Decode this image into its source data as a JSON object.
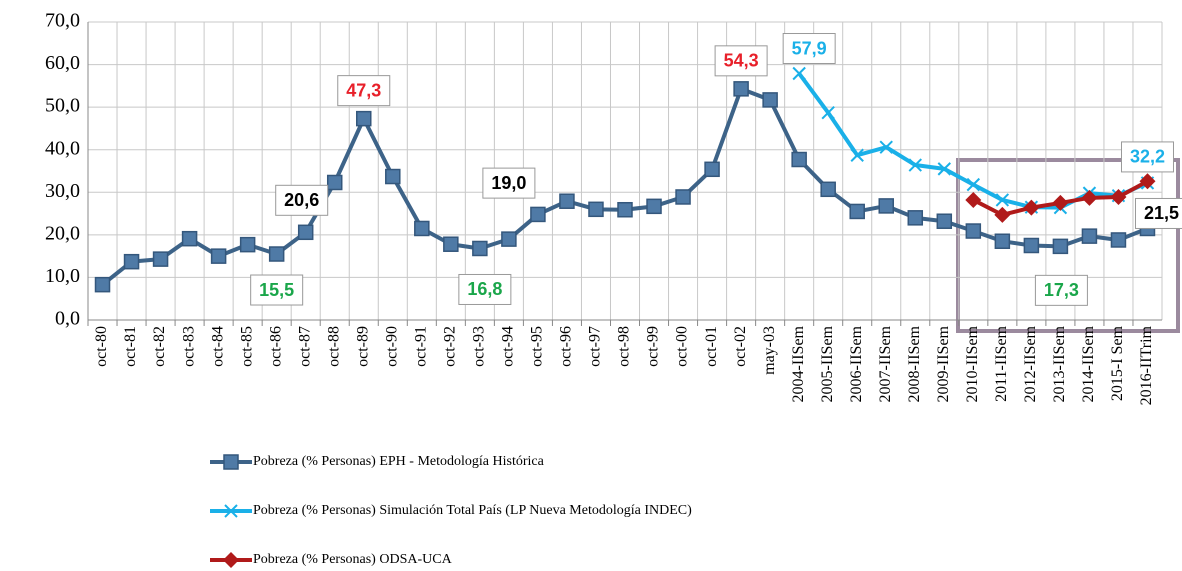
{
  "chart_data": {
    "type": "line",
    "categories": [
      "oct-80",
      "oct-81",
      "oct-82",
      "oct-83",
      "oct-84",
      "oct-85",
      "oct-86",
      "oct-87",
      "oct-88",
      "oct-89",
      "oct-90",
      "oct-91",
      "oct-92",
      "oct-93",
      "oct-94",
      "oct-95",
      "oct-96",
      "oct-97",
      "oct-98",
      "oct-99",
      "oct-00",
      "oct-01",
      "oct-02",
      "may-03",
      "2004-IISem",
      "2005-IISem",
      "2006-IISem",
      "2007-IISem",
      "2008-IISem",
      "2009-IISem",
      "2010-IISem",
      "2011-IISem",
      "2012-IISem",
      "2013-IISem",
      "2014-IISem",
      "2015-I Sem",
      "2016-IITrim"
    ],
    "series": [
      {
        "name": "Pobreza (% Personas) EPH - Metodología Histórica",
        "color": "#3d6388",
        "marker": "square",
        "values": [
          8.3,
          13.7,
          14.3,
          19.1,
          15.0,
          17.7,
          15.5,
          20.6,
          32.3,
          47.3,
          33.7,
          21.5,
          17.8,
          16.8,
          19.0,
          24.8,
          27.9,
          26.0,
          25.9,
          26.7,
          28.9,
          35.4,
          54.3,
          51.7,
          37.7,
          30.7,
          25.5,
          26.8,
          24.0,
          23.2,
          20.9,
          18.5,
          17.5,
          17.3,
          19.7,
          18.8,
          21.5
        ],
        "value_labels": [
          null,
          null,
          null,
          null,
          null,
          null,
          "15,5",
          "20,6",
          null,
          "47,3",
          null,
          null,
          null,
          "16,8",
          "19,0",
          null,
          null,
          null,
          null,
          null,
          null,
          null,
          "54,3",
          null,
          null,
          null,
          null,
          null,
          null,
          null,
          null,
          null,
          null,
          "17,3",
          null,
          null,
          "21,5"
        ],
        "value_label_colors": [
          null,
          null,
          null,
          null,
          null,
          null,
          "#1aa64a",
          "#000000",
          null,
          "#e8202a",
          null,
          null,
          null,
          "#1aa64a",
          "#000000",
          null,
          null,
          null,
          null,
          null,
          null,
          null,
          "#e8202a",
          null,
          null,
          null,
          null,
          null,
          null,
          null,
          null,
          null,
          null,
          "#1aa64a",
          null,
          null,
          "#000000"
        ]
      },
      {
        "name": "Pobreza (% Personas) Simulación Total País (LP Nueva Metodología INDEC)",
        "color": "#1ab0e8",
        "marker": "x",
        "values": [
          null,
          null,
          null,
          null,
          null,
          null,
          null,
          null,
          null,
          null,
          null,
          null,
          null,
          null,
          null,
          null,
          null,
          null,
          null,
          null,
          null,
          null,
          null,
          null,
          57.9,
          48.7,
          38.7,
          40.6,
          36.4,
          35.5,
          31.8,
          28.2,
          26.5,
          26.4,
          29.8,
          29.2,
          32.2
        ],
        "value_labels": [
          null,
          null,
          null,
          null,
          null,
          null,
          null,
          null,
          null,
          null,
          null,
          null,
          null,
          null,
          null,
          null,
          null,
          null,
          null,
          null,
          null,
          null,
          null,
          null,
          "57,9",
          null,
          null,
          null,
          null,
          null,
          null,
          null,
          null,
          null,
          null,
          null,
          "32,2"
        ],
        "value_label_colors": [
          null,
          null,
          null,
          null,
          null,
          null,
          null,
          null,
          null,
          null,
          null,
          null,
          null,
          null,
          null,
          null,
          null,
          null,
          null,
          null,
          null,
          null,
          null,
          null,
          "#1ab0e8",
          null,
          null,
          null,
          null,
          null,
          null,
          null,
          null,
          null,
          null,
          null,
          "#1ab0e8"
        ]
      },
      {
        "name": "Pobreza (% Personas) ODSA-UCA",
        "color": "#b01a1a",
        "marker": "diamond",
        "values": [
          null,
          null,
          null,
          null,
          null,
          null,
          null,
          null,
          null,
          null,
          null,
          null,
          null,
          null,
          null,
          null,
          null,
          null,
          null,
          null,
          null,
          null,
          null,
          null,
          null,
          null,
          null,
          null,
          null,
          null,
          28.2,
          24.7,
          26.4,
          27.5,
          28.7,
          28.9,
          32.6
        ]
      }
    ],
    "ylim": [
      0,
      70
    ],
    "yticks": [
      {
        "value": 0,
        "label": "0,0"
      },
      {
        "value": 10,
        "label": "10,0"
      },
      {
        "value": 20,
        "label": "20,0"
      },
      {
        "value": 30,
        "label": "30,0"
      },
      {
        "value": 40,
        "label": "40,0"
      },
      {
        "value": 50,
        "label": "50,0"
      },
      {
        "value": 60,
        "label": "60,0"
      },
      {
        "value": 70,
        "label": "70,0"
      }
    ],
    "grid": true,
    "legend": "bottom"
  }
}
